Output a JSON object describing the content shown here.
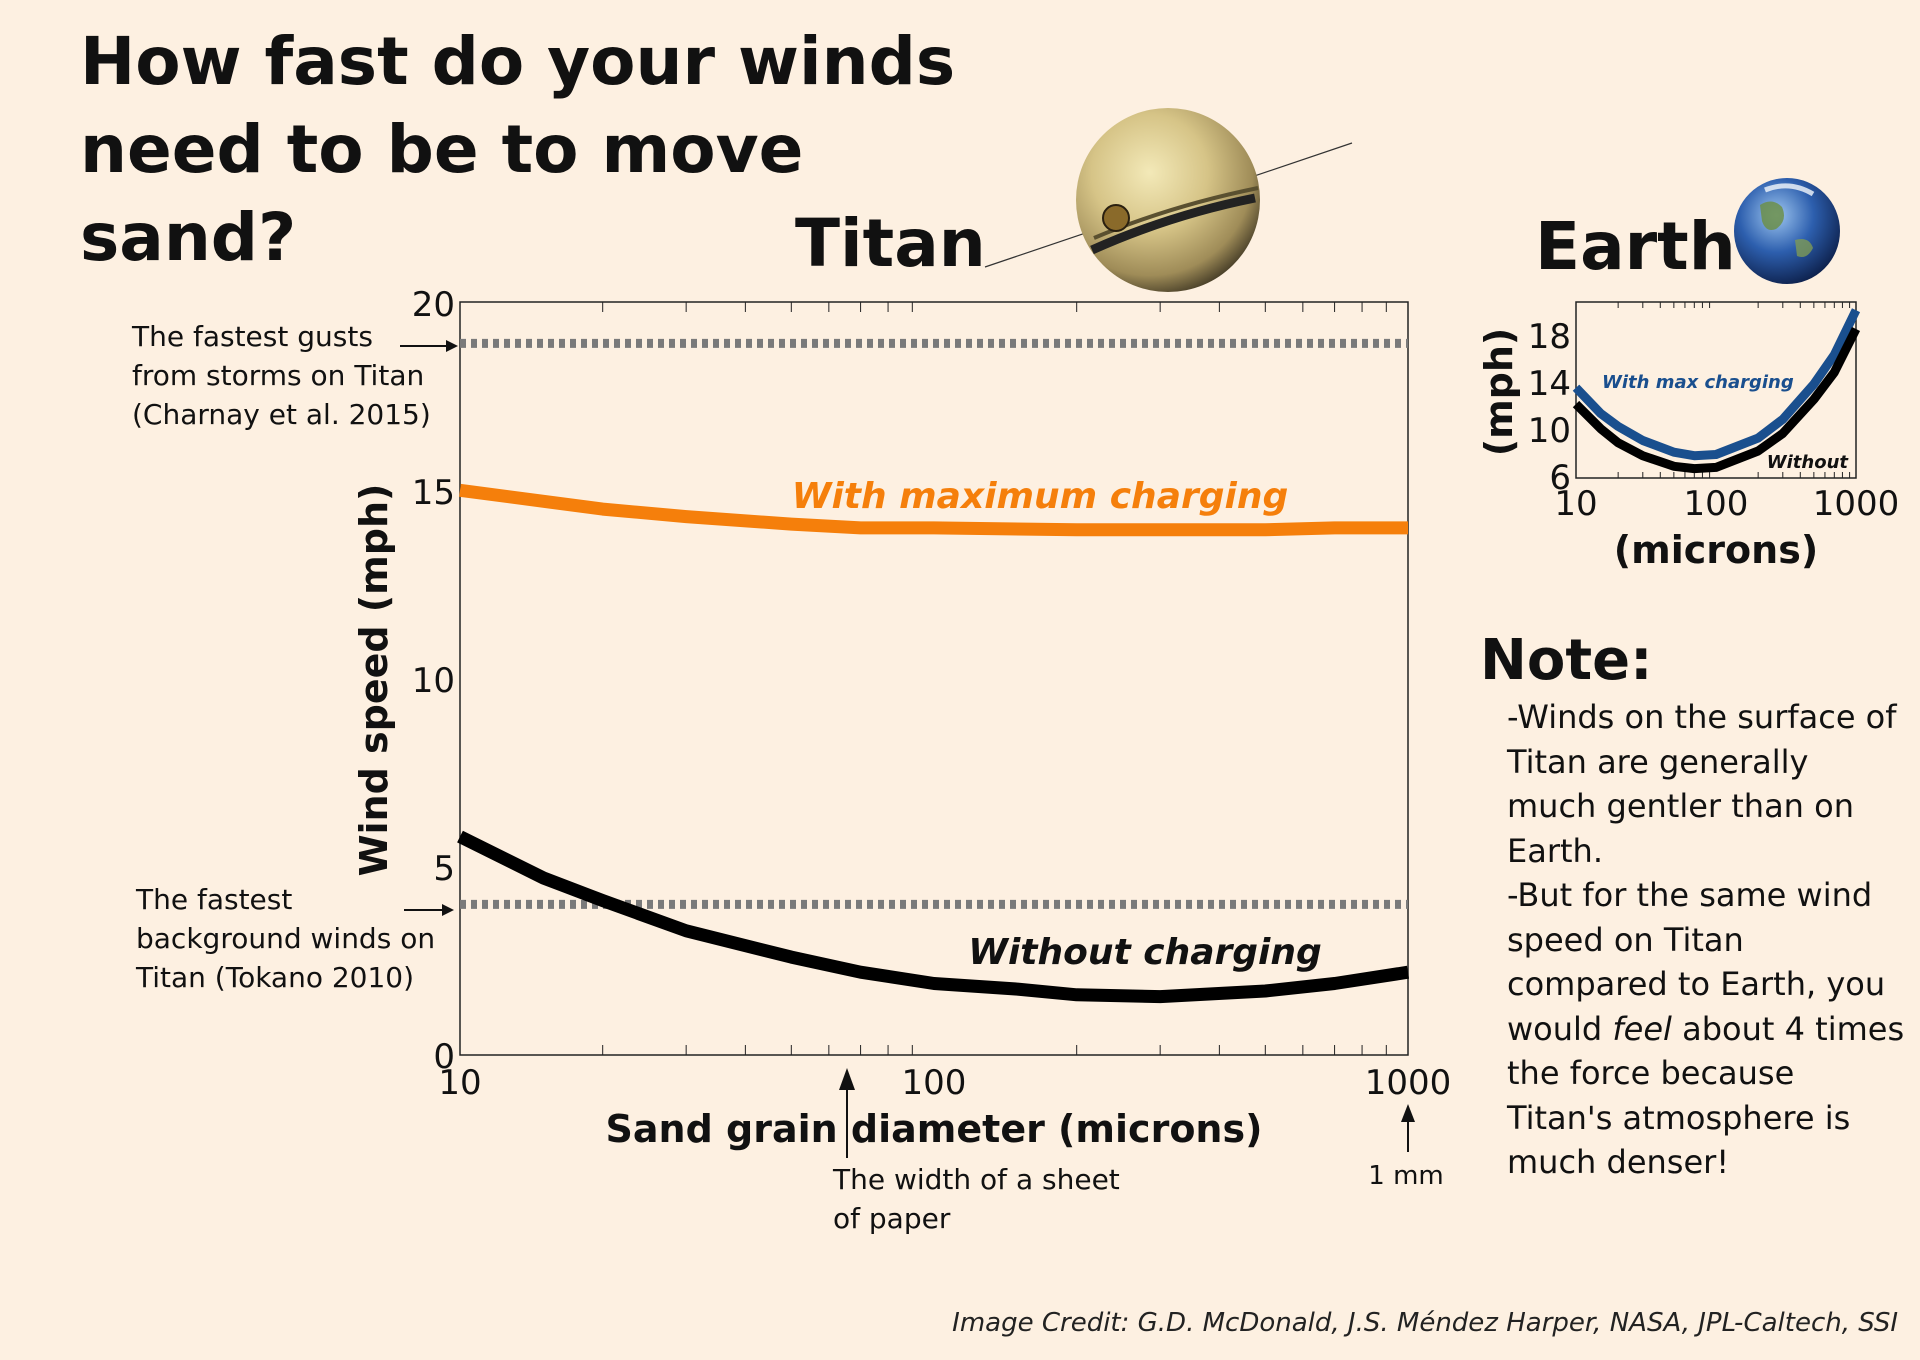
{
  "title_lines": [
    "How fast do your winds",
    "need to be to move sand?"
  ],
  "titan_label": "Titan",
  "earth_label": "Earth",
  "annotations": {
    "storm_gusts": [
      "The fastest gusts",
      "from storms on Titan",
      "(Charnay et al. 2015)"
    ],
    "background_winds": [
      "The fastest",
      "background winds on",
      "Titan (Tokano 2010)"
    ],
    "paper_width": [
      "The width of a sheet",
      "of paper"
    ],
    "one_mm": "1 mm"
  },
  "note": {
    "heading": "Note:",
    "line1": "-Winds on the surface of Titan are generally much gentler than on Earth.",
    "line2_before": "-But for the same wind speed on Titan compared to Earth, you would ",
    "line2_emph": "feel",
    "line2_after": " about 4 times the force because Titan's atmosphere is much denser!"
  },
  "credit": "Image Credit: G.D. McDonald, J.S. Méndez Harper, NASA, JPL-Caltech, SSI",
  "colors": {
    "charging": "#f57f0b",
    "no_charging": "#000000",
    "reference": "#7a7a7a",
    "earth_charging": "#1a4f8e",
    "background": "#fdf0e1"
  },
  "chart_data": [
    {
      "type": "line",
      "xlabel": "Sand grain diameter (microns)",
      "ylabel": "Wind speed (mph)",
      "x_scale": "log",
      "xlim": [
        10,
        1000
      ],
      "ylim": [
        0,
        20
      ],
      "x_ticks": [
        "10",
        "100",
        "1000"
      ],
      "y_ticks": [
        "0",
        "5",
        "10",
        "15",
        "20"
      ],
      "grid": false,
      "series": [
        {
          "name": "With maximum charging",
          "color": "#f57f0b",
          "x": [
            10,
            20,
            30,
            50,
            70,
            100,
            200,
            300,
            500,
            700,
            1000
          ],
          "y": [
            15.0,
            14.5,
            14.3,
            14.1,
            14.0,
            14.0,
            13.95,
            13.95,
            13.95,
            14.0,
            14.0
          ]
        },
        {
          "name": "Without charging",
          "color": "#000000",
          "x": [
            10,
            15,
            20,
            30,
            50,
            70,
            100,
            150,
            200,
            300,
            500,
            700,
            1000
          ],
          "y": [
            5.8,
            4.7,
            4.1,
            3.3,
            2.6,
            2.2,
            1.9,
            1.75,
            1.6,
            1.55,
            1.7,
            1.9,
            2.2
          ]
        }
      ],
      "reference_lines": [
        {
          "y": 18.9,
          "style": "dotted"
        },
        {
          "y": 4.0,
          "style": "dotted"
        }
      ],
      "markers": [
        {
          "x": 70
        },
        {
          "x": 1000
        }
      ]
    },
    {
      "type": "line",
      "xlabel": "(microns)",
      "ylabel": "(mph)",
      "x_scale": "log",
      "xlim": [
        10,
        1000
      ],
      "ylim": [
        6,
        21
      ],
      "x_ticks": [
        "10",
        "100",
        "1000"
      ],
      "y_ticks": [
        "6",
        "10",
        "14",
        "18"
      ],
      "series": [
        {
          "name": "With max charging",
          "color": "#1a4f8e",
          "x": [
            10,
            15,
            20,
            30,
            50,
            70,
            100,
            200,
            300,
            500,
            700,
            1000
          ],
          "y": [
            13.7,
            11.5,
            10.4,
            9.2,
            8.2,
            7.9,
            8.0,
            9.4,
            11.0,
            14.0,
            16.5,
            20.3
          ]
        },
        {
          "name": "Without",
          "color": "#000000",
          "x": [
            10,
            15,
            20,
            30,
            50,
            70,
            100,
            200,
            300,
            500,
            700,
            1000
          ],
          "y": [
            12.3,
            10.2,
            9.0,
            7.9,
            7.0,
            6.8,
            6.9,
            8.3,
            9.8,
            12.7,
            15.0,
            18.7
          ]
        }
      ]
    }
  ]
}
